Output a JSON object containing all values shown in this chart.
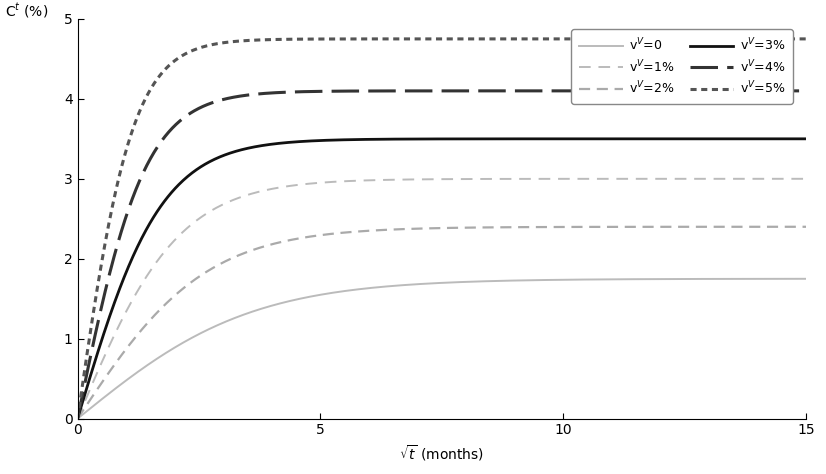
{
  "title_y": "C$^t$ (%)",
  "title_x": "$\\sqrt{t}$ (months)",
  "xlim": [
    0,
    15
  ],
  "ylim": [
    0,
    5
  ],
  "xticks": [
    0,
    5,
    10,
    15
  ],
  "yticks": [
    0,
    1,
    2,
    3,
    4,
    5
  ],
  "curves": [
    {
      "label": "v$^V$=0",
      "saturation": 1.75,
      "color": "#bbbbbb",
      "linestyle": "solid",
      "linewidth": 1.4,
      "rise_rate": 0.28,
      "legend_row": 0,
      "legend_col": 0
    },
    {
      "label": "v$^V$=1%",
      "saturation": 3.0,
      "color": "#bbbbbb",
      "linestyle": "loosedash",
      "linewidth": 1.4,
      "rise_rate": 0.48,
      "legend_row": 0,
      "legend_col": 1
    },
    {
      "label": "v$^V$=2%",
      "saturation": 2.4,
      "color": "#aaaaaa",
      "linestyle": "dashdot",
      "linewidth": 1.6,
      "rise_rate": 0.38,
      "legend_row": 1,
      "legend_col": 0
    },
    {
      "label": "v$^V$=3%",
      "saturation": 3.5,
      "color": "#111111",
      "linestyle": "solid",
      "linewidth": 2.0,
      "rise_rate": 0.58,
      "legend_row": 1,
      "legend_col": 1
    },
    {
      "label": "v$^V$=4%",
      "saturation": 4.1,
      "color": "#333333",
      "linestyle": "heavydash",
      "linewidth": 2.2,
      "rise_rate": 0.72,
      "legend_row": 2,
      "legend_col": 0
    },
    {
      "label": "v$^V$=5%",
      "saturation": 4.75,
      "color": "#555555",
      "linestyle": "dotdash",
      "linewidth": 2.2,
      "rise_rate": 0.88,
      "legend_row": 2,
      "legend_col": 1
    }
  ],
  "background_color": "#ffffff",
  "figure_size": [
    8.26,
    4.74
  ],
  "dpi": 100
}
